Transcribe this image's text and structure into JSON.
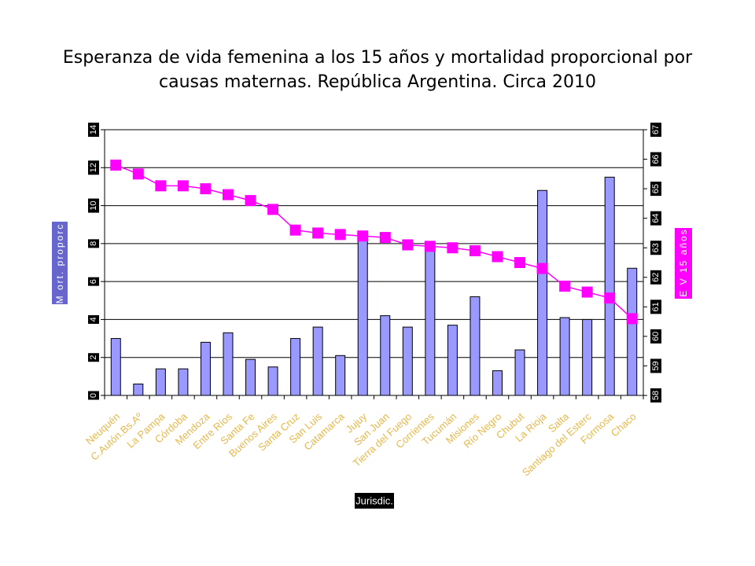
{
  "title_line1": "Esperanza de vida femenina a los 15 años y mortalidad proporcional por",
  "title_line2": "causas maternas. República Argentina. Circa 2010",
  "colors": {
    "bar_fill": "#9999ff",
    "bar_stroke": "#000000",
    "line": "#ff00ff",
    "label_box": "#6666cc",
    "right_label_box": "#ff00ff",
    "category_text": "#e6b84c",
    "xlabel_box": "#000000"
  },
  "chart_data": {
    "type": "bar+line",
    "title": "Esperanza de vida femenina a los 15 años y mortalidad proporcional por causas maternas. República Argentina. Circa 2010",
    "xlabel": "Jurisdic.",
    "ylabel": "M ort. proporc",
    "y2label": "E V 15 años",
    "ylim": [
      0,
      14
    ],
    "y2lim": [
      58,
      67
    ],
    "yticks": [
      "0",
      "2",
      "4",
      "6",
      "8",
      "10",
      "12",
      "14"
    ],
    "y2ticks": [
      "58",
      "59",
      "60",
      "61",
      "62",
      "63",
      "64",
      "65",
      "66",
      "67"
    ],
    "grid": "horizontal major lines",
    "categories": [
      "Neuquén",
      "C.Autón.Bs.Aº",
      "La Pampa",
      "Córdoba",
      "Mendoza",
      "Entre Ríos",
      "Santa Fe",
      "Buenos Aires",
      "Santa Cruz",
      "San Luis",
      "Catamarca",
      "Jujuy",
      "San Juan",
      "Tierra del Fuego",
      "Corrientes",
      "Tucumán",
      "Misiones",
      "Río Negro",
      "Chubut",
      "La Rioja",
      "Salta",
      "Santiago del Esterc",
      "Formosa",
      "Chaco"
    ],
    "series": [
      {
        "type": "bar",
        "axis": "left",
        "values": [
          3.0,
          0.6,
          1.4,
          1.4,
          2.8,
          3.3,
          1.9,
          1.5,
          3.0,
          3.6,
          2.1,
          8.2,
          4.2,
          3.6,
          7.7,
          3.7,
          5.2,
          1.3,
          2.4,
          10.8,
          4.1,
          4.0,
          11.5,
          6.7
        ]
      },
      {
        "type": "line",
        "axis": "right",
        "values": [
          65.8,
          65.5,
          65.1,
          65.1,
          65.0,
          64.8,
          64.6,
          64.3,
          63.6,
          63.5,
          63.45,
          63.4,
          63.35,
          63.1,
          63.05,
          63.0,
          62.9,
          62.7,
          62.5,
          62.3,
          61.7,
          61.5,
          61.3,
          60.6
        ]
      }
    ]
  }
}
